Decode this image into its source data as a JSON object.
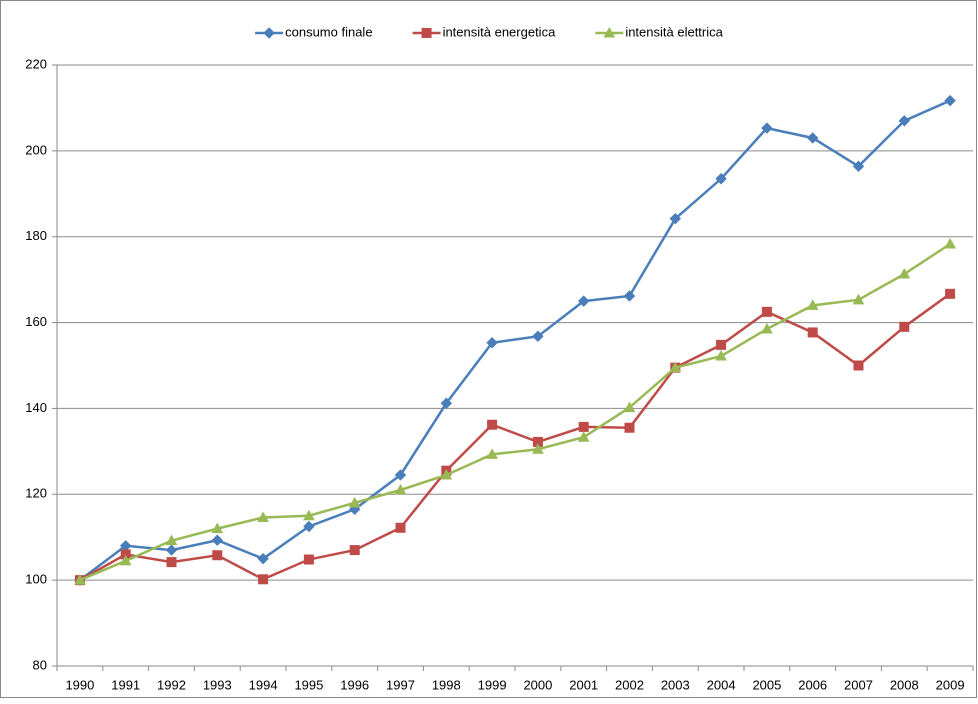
{
  "chart_data": {
    "type": "line",
    "categories": [
      "1990",
      "1991",
      "1992",
      "1993",
      "1994",
      "1995",
      "1996",
      "1997",
      "1998",
      "1999",
      "2000",
      "2001",
      "2002",
      "2003",
      "2004",
      "2005",
      "2006",
      "2007",
      "2008",
      "2009"
    ],
    "series": [
      {
        "name": "consumo finale",
        "color": "#4a7ebb",
        "marker": "diamond",
        "values": [
          100,
          108,
          107,
          109.3,
          105,
          112.5,
          116.5,
          124.5,
          141.2,
          155.3,
          156.8,
          165,
          166.2,
          184.2,
          193.5,
          205.3,
          203,
          196.4,
          207,
          211.7
        ]
      },
      {
        "name": "intensità energetica",
        "color": "#be4b48",
        "marker": "square",
        "values": [
          100,
          106,
          104.2,
          105.8,
          100.2,
          104.8,
          107,
          112.2,
          125.5,
          136.2,
          132.2,
          135.7,
          135.5,
          149.5,
          154.8,
          162.5,
          157.7,
          150,
          159,
          166.7
        ]
      },
      {
        "name": "intensità elettrica",
        "color": "#98b954",
        "marker": "triangle",
        "values": [
          100,
          104.5,
          109.2,
          112,
          114.6,
          115,
          118,
          121,
          124.5,
          129.3,
          130.5,
          133.3,
          140.2,
          149.5,
          152.2,
          158.5,
          164,
          165.3,
          171.3,
          178.3
        ]
      }
    ],
    "ylim": [
      80,
      220
    ],
    "yticks": [
      80,
      100,
      120,
      140,
      160,
      180,
      200,
      220
    ],
    "grid": true,
    "legend": "top"
  }
}
